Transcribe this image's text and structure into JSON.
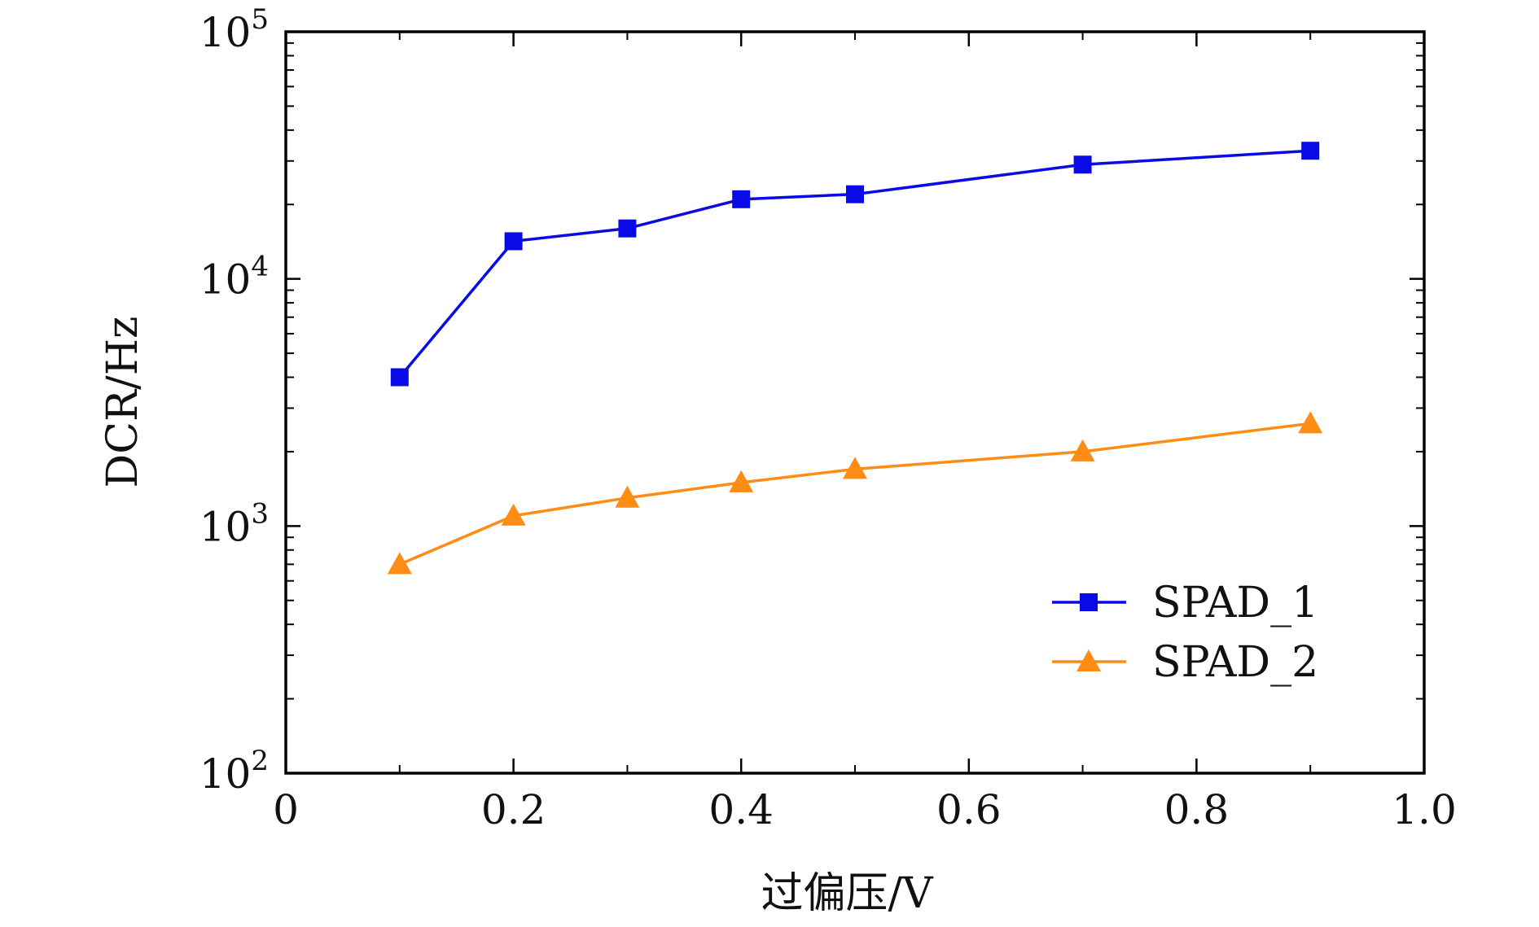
{
  "chart_data": {
    "type": "line",
    "title": "",
    "xlabel": "过偏压/V",
    "ylabel": "DCR/Hz",
    "xlim": [
      0,
      1.0
    ],
    "ylim": [
      100,
      100000
    ],
    "yscale": "log",
    "x_ticks": [
      {
        "value": 0,
        "label": "0"
      },
      {
        "value": 0.2,
        "label": "0.2"
      },
      {
        "value": 0.4,
        "label": "0.4"
      },
      {
        "value": 0.6,
        "label": "0.6"
      },
      {
        "value": 0.8,
        "label": "0.8"
      },
      {
        "value": 1.0,
        "label": "1.0"
      }
    ],
    "y_ticks": [
      {
        "value": 100,
        "base": "10",
        "exp": "2"
      },
      {
        "value": 1000,
        "base": "10",
        "exp": "3"
      },
      {
        "value": 10000,
        "base": "10",
        "exp": "4"
      },
      {
        "value": 100000,
        "base": "10",
        "exp": "5"
      }
    ],
    "grid": false,
    "legend_position": "lower-right",
    "x": [
      0.1,
      0.2,
      0.3,
      0.4,
      0.5,
      0.7,
      0.9
    ],
    "series": [
      {
        "name": "SPAD_1",
        "color": "#0a0ae6",
        "marker": "square",
        "values": [
          4000,
          14200,
          16000,
          21000,
          22000,
          29000,
          33000
        ]
      },
      {
        "name": "SPAD_2",
        "color": "#ff8c14",
        "marker": "triangle",
        "values": [
          700,
          1100,
          1300,
          1500,
          1700,
          2000,
          2600
        ]
      }
    ]
  }
}
